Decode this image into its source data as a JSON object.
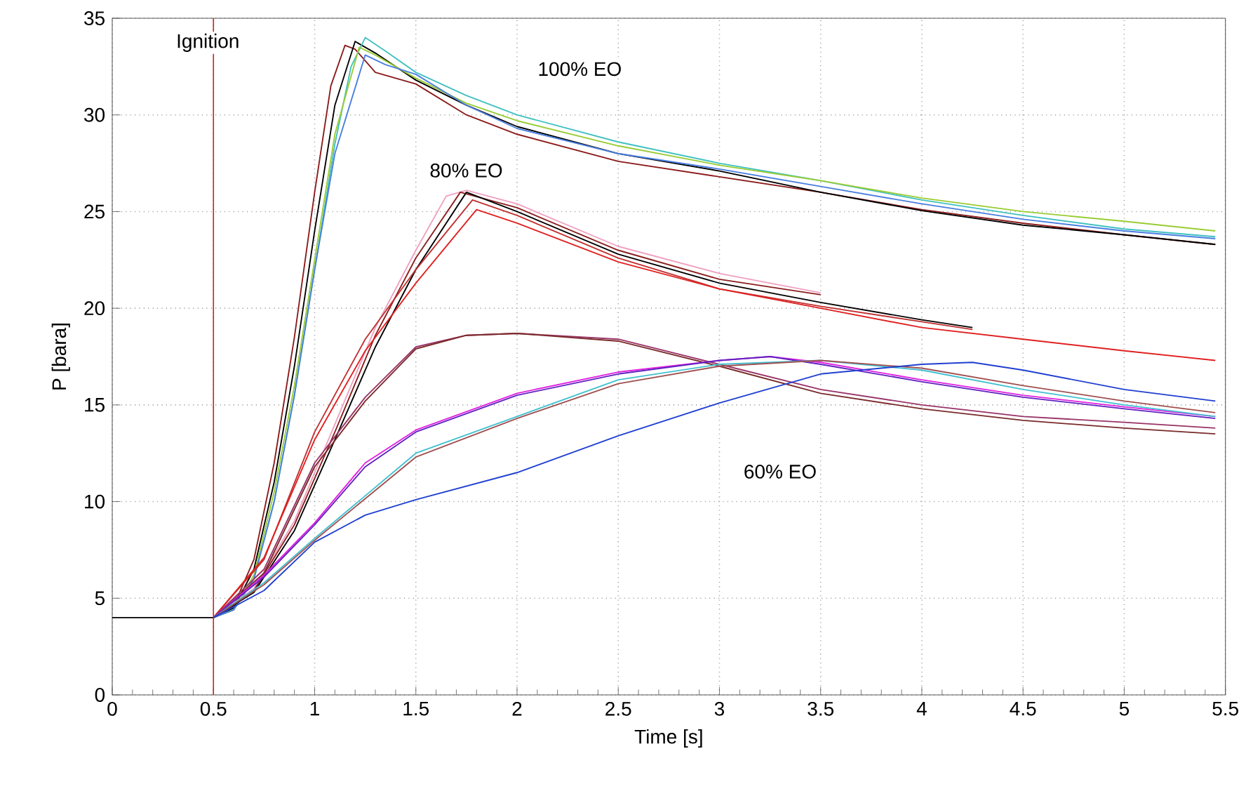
{
  "chart_data": {
    "type": "line",
    "xlabel": "Time [s]",
    "ylabel": "P [bara]",
    "xlim": [
      0,
      5.5
    ],
    "ylim": [
      0,
      35
    ],
    "xticks": [
      0,
      0.5,
      1,
      1.5,
      2,
      2.5,
      3,
      3.5,
      4,
      4.5,
      5,
      5.5
    ],
    "yticks": [
      0,
      5,
      10,
      15,
      20,
      25,
      30,
      35
    ],
    "grid": true,
    "ref_lines": [
      {
        "axis": "x",
        "value": 0.5,
        "label": "Ignition",
        "color": "#cc2222"
      }
    ],
    "annotations": [
      "100% EO",
      "80% EO",
      "60% EO"
    ],
    "series": [
      {
        "color": "#8b1a1a",
        "x": [
          0.5,
          0.6,
          0.7,
          0.8,
          0.9,
          1.0,
          1.08,
          1.15,
          1.2,
          1.3,
          1.5,
          1.75,
          2,
          2.5,
          3,
          3.5,
          4,
          4.5,
          5,
          5.45
        ],
        "values": [
          4,
          4.6,
          7,
          12,
          18.5,
          26,
          31.5,
          33.6,
          33.4,
          32.2,
          31.6,
          30.0,
          29.0,
          27.6,
          26.8,
          26.0,
          25.1,
          24.4,
          23.8,
          23.3
        ]
      },
      {
        "color": "#000000",
        "x": [
          0,
          0.5,
          0.6,
          0.7,
          0.8,
          0.9,
          1.0,
          1.1,
          1.2,
          1.3,
          1.5,
          1.75,
          2,
          2.5,
          3,
          3.5,
          4,
          4.5,
          5,
          5.45
        ],
        "values": [
          4,
          4,
          4.5,
          6.5,
          11,
          17,
          24,
          30.5,
          33.8,
          33.2,
          31.8,
          30.5,
          29.4,
          28.0,
          27.1,
          26.0,
          25.05,
          24.3,
          23.8,
          23.3
        ]
      },
      {
        "color": "#40c0c0",
        "x": [
          0.5,
          0.6,
          0.7,
          0.8,
          0.9,
          1.0,
          1.1,
          1.18,
          1.25,
          1.35,
          1.5,
          1.75,
          2,
          2.5,
          3,
          3.5,
          4,
          4.5,
          5,
          5.45
        ],
        "values": [
          4,
          4.4,
          6,
          10,
          15.5,
          22,
          28.5,
          32.5,
          34.0,
          33.3,
          32.2,
          31.0,
          30.0,
          28.6,
          27.5,
          26.6,
          25.6,
          24.8,
          24.1,
          23.7
        ]
      },
      {
        "color": "#99cc33",
        "x": [
          0.5,
          0.6,
          0.7,
          0.8,
          0.9,
          1.0,
          1.1,
          1.22,
          1.3,
          1.5,
          1.75,
          2,
          2.5,
          3,
          3.5,
          4,
          4.5,
          5,
          5.45
        ],
        "values": [
          4,
          4.4,
          6.2,
          10.5,
          16,
          22.5,
          29,
          33.5,
          33.1,
          31.9,
          30.6,
          29.7,
          28.4,
          27.4,
          26.6,
          25.7,
          25.0,
          24.5,
          24.0
        ]
      },
      {
        "color": "#4a7ee0",
        "x": [
          0.5,
          0.6,
          0.7,
          0.8,
          0.9,
          1.0,
          1.1,
          1.25,
          1.35,
          1.5,
          1.75,
          2,
          2.5,
          3,
          3.5,
          4,
          4.5,
          5,
          5.45
        ],
        "values": [
          4,
          4.4,
          6,
          10,
          15.5,
          22,
          28,
          33.1,
          32.6,
          32.1,
          30.5,
          29.3,
          28.0,
          27.2,
          26.3,
          25.4,
          24.6,
          24.0,
          23.6
        ]
      },
      {
        "color": "#f0a0c0",
        "x": [
          0.5,
          0.7,
          0.9,
          1.1,
          1.3,
          1.5,
          1.65,
          1.75,
          2,
          2.5,
          3,
          3.5
        ],
        "values": [
          4,
          5.5,
          9,
          14,
          19,
          23,
          25.8,
          26.1,
          25.4,
          23.2,
          21.8,
          20.8
        ]
      },
      {
        "color": "#8b2020",
        "x": [
          0.5,
          0.7,
          0.9,
          1.1,
          1.3,
          1.5,
          1.72,
          2,
          2.5,
          3,
          3.5
        ],
        "values": [
          4,
          5.4,
          8.8,
          13.6,
          18.6,
          22.6,
          26.0,
          25.2,
          23.0,
          21.5,
          20.7
        ]
      },
      {
        "color": "#000000",
        "x": [
          0.5,
          0.7,
          0.9,
          1.1,
          1.3,
          1.5,
          1.75,
          2,
          2.5,
          3,
          3.5,
          4,
          4.25
        ],
        "values": [
          4,
          5.3,
          8.5,
          13.2,
          18,
          22,
          26.0,
          25.0,
          22.8,
          21.3,
          20.3,
          19.4,
          19.0
        ]
      },
      {
        "color": "#c03030",
        "x": [
          0.5,
          0.75,
          1.0,
          1.25,
          1.5,
          1.78,
          2,
          2.5,
          3,
          3.5,
          4,
          4.25
        ],
        "values": [
          4,
          7.0,
          13.6,
          18.4,
          22.0,
          25.6,
          24.8,
          22.6,
          21.0,
          20.1,
          19.3,
          18.9
        ]
      },
      {
        "color": "#e02020",
        "x": [
          0.5,
          0.75,
          1.0,
          1.25,
          1.5,
          1.8,
          2,
          2.5,
          3,
          3.5,
          4,
          4.5,
          5,
          5.45
        ],
        "values": [
          4,
          7.1,
          13.2,
          17.8,
          21.3,
          25.1,
          24.4,
          22.4,
          21.0,
          20.0,
          19.0,
          18.4,
          17.8,
          17.3
        ]
      },
      {
        "color": "#993366",
        "x": [
          0.5,
          0.75,
          1.0,
          1.25,
          1.5,
          1.75,
          2,
          2.5,
          3,
          3.5,
          4,
          4.5,
          5,
          5.45
        ],
        "values": [
          4,
          6.5,
          12.0,
          15.4,
          18.0,
          18.6,
          18.7,
          18.4,
          17.1,
          15.8,
          15.0,
          14.4,
          14.1,
          13.8
        ]
      },
      {
        "color": "#7a2a2a",
        "x": [
          0.5,
          0.75,
          1.0,
          1.25,
          1.5,
          1.75,
          2,
          2.5,
          3,
          3.5,
          4,
          4.5,
          5,
          5.45
        ],
        "values": [
          4,
          6.3,
          11.8,
          15.2,
          17.9,
          18.6,
          18.7,
          18.3,
          17.0,
          15.6,
          14.8,
          14.2,
          13.8,
          13.5
        ]
      },
      {
        "color": "#e020e0",
        "x": [
          0.5,
          0.75,
          1.0,
          1.25,
          1.5,
          2,
          2.5,
          3,
          3.25,
          3.5,
          4,
          4.5,
          5,
          5.45
        ],
        "values": [
          4,
          6.2,
          8.9,
          12.0,
          13.7,
          15.6,
          16.7,
          17.3,
          17.5,
          17.2,
          16.3,
          15.5,
          14.9,
          14.4
        ]
      },
      {
        "color": "#6020c0",
        "x": [
          0.5,
          0.75,
          1.0,
          1.25,
          1.5,
          2,
          2.5,
          3,
          3.25,
          3.5,
          4,
          4.5,
          5,
          5.45
        ],
        "values": [
          4,
          6.1,
          8.8,
          11.8,
          13.6,
          15.5,
          16.6,
          17.3,
          17.5,
          17.1,
          16.2,
          15.4,
          14.8,
          14.3
        ]
      },
      {
        "color": "#40c0d0",
        "x": [
          0.5,
          0.75,
          1.0,
          1.5,
          2,
          2.5,
          3,
          3.5,
          4,
          4.5,
          5,
          5.45
        ],
        "values": [
          4,
          5.8,
          8.1,
          12.5,
          14.4,
          16.3,
          17.1,
          17.3,
          16.8,
          15.8,
          15.0,
          14.4
        ]
      },
      {
        "color": "#a05050",
        "x": [
          0.5,
          0.75,
          1.0,
          1.5,
          2,
          2.5,
          3,
          3.5,
          4,
          4.5,
          5,
          5.45
        ],
        "values": [
          4,
          5.7,
          8.0,
          12.3,
          14.3,
          16.1,
          17.0,
          17.3,
          16.9,
          16.0,
          15.2,
          14.6
        ]
      },
      {
        "color": "#2040d0",
        "x": [
          0.5,
          0.75,
          1.0,
          1.25,
          1.5,
          2,
          2.5,
          3,
          3.5,
          4,
          4.25,
          4.5,
          5,
          5.45
        ],
        "values": [
          4,
          5.4,
          7.9,
          9.3,
          10.1,
          11.5,
          13.4,
          15.1,
          16.6,
          17.1,
          17.2,
          16.8,
          15.8,
          15.2
        ]
      }
    ]
  }
}
